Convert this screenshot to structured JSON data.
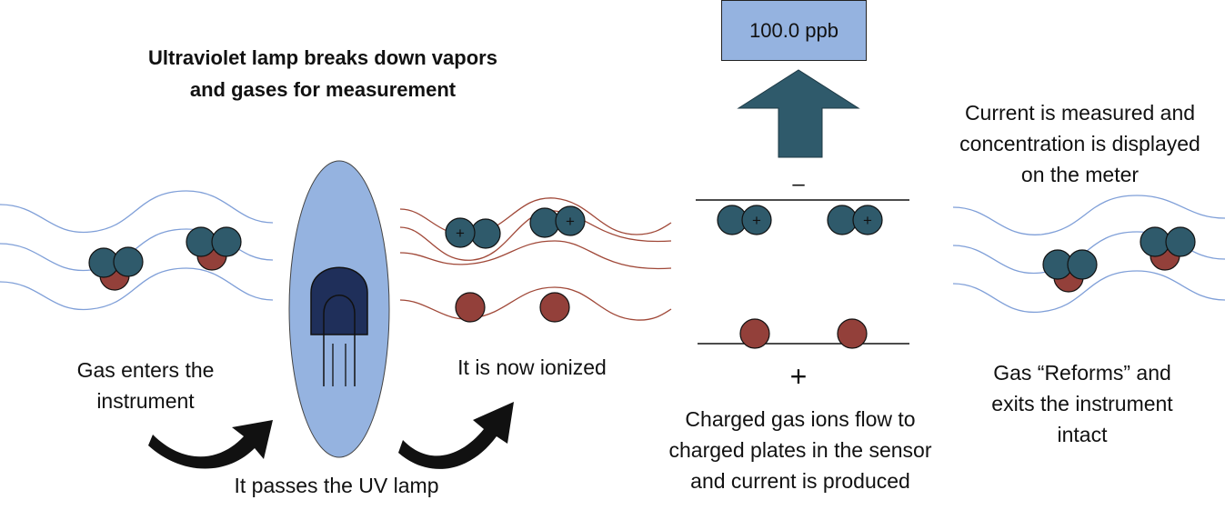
{
  "colors": {
    "gas_line": "#7f9fd8",
    "ion_line": "#a04838",
    "molecule_teal": "#2f5a6b",
    "molecule_red": "#93403a",
    "lamp_outer": "#95b3e0",
    "lamp_inner": "#1f2f5a",
    "meter_bg": "#95b3e0",
    "arrow_up": "#2f5a6b",
    "arrow_curve": "#111111"
  },
  "labels": {
    "title": "Ultraviolet lamp breaks down vapors\nand gases for measurement",
    "gas_enters": "Gas enters the\ninstrument",
    "passes_lamp": "It passes the UV lamp",
    "ionized": "It is now ionized",
    "charged_flow": "Charged gas ions flow to\ncharged plates in the sensor\nand current is produced",
    "current_measured": "Current is measured and\nconcentration is displayed\non the meter",
    "reforms": "Gas “Reforms” and\nexits the instrument\nintact"
  },
  "meter": {
    "reading": "100.0 ppb"
  },
  "plates": {
    "top_sign": "–",
    "bottom_sign": "+"
  },
  "ion_charge": "+"
}
